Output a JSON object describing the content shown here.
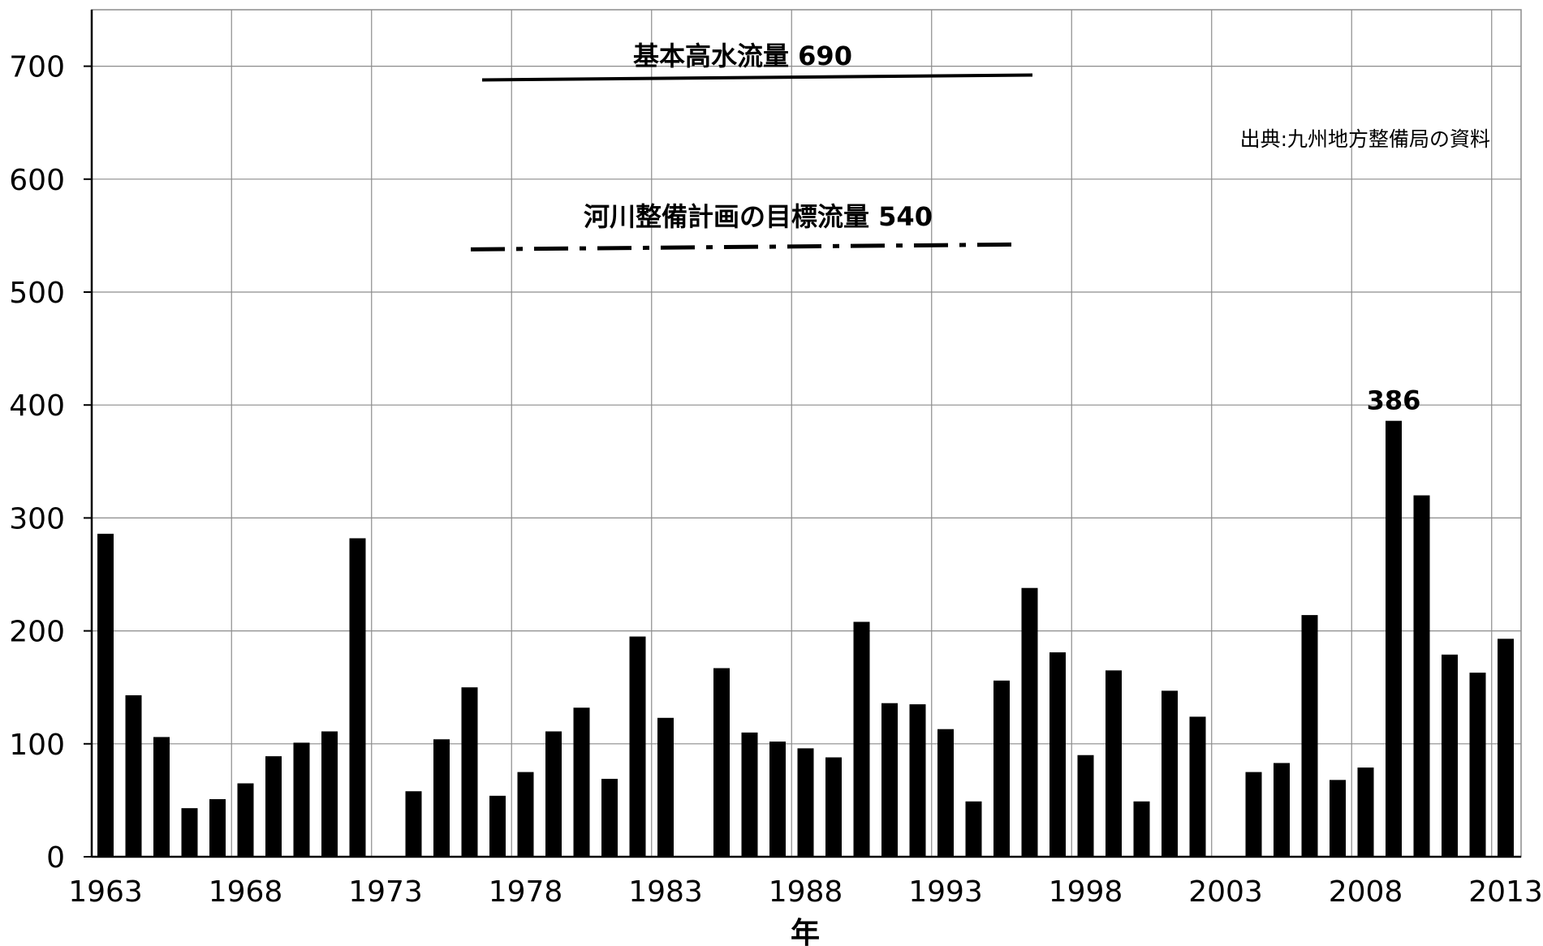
{
  "chart_data": {
    "type": "bar",
    "xlabel": "年",
    "ylabel": "",
    "ylim": [
      0,
      700
    ],
    "yticks": [
      0,
      100,
      200,
      300,
      400,
      500,
      600,
      700
    ],
    "xtick_labels": [
      "1963",
      "1968",
      "1973",
      "1978",
      "1983",
      "1988",
      "1993",
      "1998",
      "2003",
      "2008",
      "2013"
    ],
    "grid": true,
    "legend": "none",
    "bar_color": "#000000",
    "categories": [
      "1963",
      "1964",
      "1965",
      "1966",
      "1967",
      "1968",
      "1969",
      "1970",
      "1971",
      "1972",
      "1973",
      "1974",
      "1975",
      "1976",
      "1977",
      "1978",
      "1979",
      "1980",
      "1981",
      "1982",
      "1983",
      "1984",
      "1985",
      "1986",
      "1987",
      "1988",
      "1989",
      "1990",
      "1991",
      "1992",
      "1993",
      "1994",
      "1995",
      "1996",
      "1997",
      "1998",
      "1999",
      "2000",
      "2001",
      "2002",
      "2003",
      "2004",
      "2005",
      "2006",
      "2007",
      "2008",
      "2009",
      "2010",
      "2011",
      "2012",
      "2013"
    ],
    "values": [
      286,
      143,
      106,
      43,
      51,
      65,
      89,
      101,
      111,
      282,
      null,
      58,
      104,
      150,
      54,
      75,
      111,
      132,
      69,
      195,
      123,
      null,
      167,
      110,
      102,
      96,
      88,
      208,
      136,
      135,
      113,
      49,
      156,
      238,
      181,
      90,
      165,
      49,
      147,
      124,
      null,
      75,
      83,
      214,
      68,
      79,
      386,
      320,
      179,
      163,
      193
    ],
    "data_labels": [
      {
        "category": "2009",
        "text": "386"
      }
    ],
    "reference_lines": [
      {
        "label": "基本高水流量",
        "value_text": "690",
        "value": 690,
        "style": "solid"
      },
      {
        "label": "河川整備計画の目標流量",
        "value_text": "540",
        "value": 540,
        "style": "dash-dot"
      }
    ],
    "source_note": "出典:九州地方整備局の資料"
  }
}
